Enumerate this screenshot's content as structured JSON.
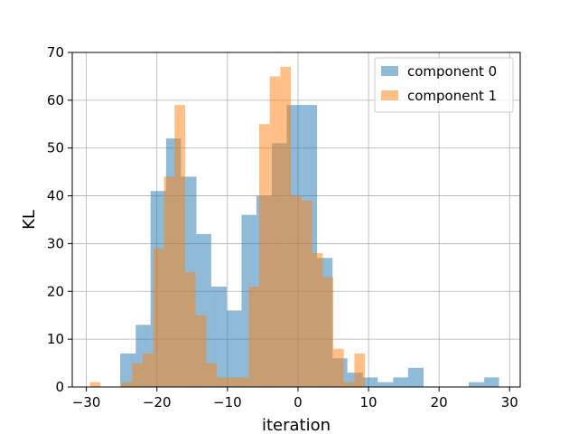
{
  "chart_data": {
    "type": "bar",
    "subtype": "overlaid-histogram",
    "title": "",
    "xlabel": "iteration",
    "ylabel": "KL",
    "xlim": [
      -32,
      31.5
    ],
    "ylim": [
      0,
      70
    ],
    "xticks": [
      -30,
      -20,
      -10,
      0,
      10,
      20,
      30
    ],
    "yticks": [
      0,
      10,
      20,
      30,
      40,
      50,
      60,
      70
    ],
    "grid": true,
    "legend_position": "top-right",
    "series": [
      {
        "name": "component 0",
        "color": "#1f77b4",
        "alpha": 0.5,
        "bins": [
          [
            -25.2,
            -23.0,
            7
          ],
          [
            -23.0,
            -20.9,
            13
          ],
          [
            -20.9,
            -18.7,
            41
          ],
          [
            -18.7,
            -16.6,
            52
          ],
          [
            -16.6,
            -14.4,
            44
          ],
          [
            -14.4,
            -12.3,
            32
          ],
          [
            -12.3,
            -10.1,
            21
          ],
          [
            -10.1,
            -8.0,
            16
          ],
          [
            -8.0,
            -5.9,
            36
          ],
          [
            -5.9,
            -3.7,
            40
          ],
          [
            -3.7,
            -1.6,
            51
          ],
          [
            -1.6,
            0.6,
            59
          ],
          [
            0.6,
            2.7,
            59
          ],
          [
            2.7,
            4.9,
            27
          ],
          [
            4.9,
            7.0,
            6
          ],
          [
            7.0,
            9.2,
            3
          ],
          [
            9.2,
            11.3,
            2
          ],
          [
            11.3,
            13.5,
            1
          ],
          [
            13.5,
            15.6,
            2
          ],
          [
            15.6,
            17.8,
            4
          ],
          [
            17.8,
            19.9,
            0
          ],
          [
            19.9,
            22.1,
            0
          ],
          [
            22.1,
            24.2,
            0
          ],
          [
            24.2,
            26.4,
            1
          ],
          [
            26.4,
            28.5,
            2
          ]
        ]
      },
      {
        "name": "component 1",
        "color": "#ff7f0e",
        "alpha": 0.5,
        "bins": [
          [
            -29.5,
            -28.0,
            1
          ],
          [
            -28.0,
            -26.5,
            0
          ],
          [
            -26.5,
            -25.0,
            0
          ],
          [
            -25.0,
            -23.5,
            1
          ],
          [
            -23.5,
            -22.0,
            5
          ],
          [
            -22.0,
            -20.5,
            7
          ],
          [
            -20.5,
            -19.0,
            29
          ],
          [
            -19.0,
            -17.5,
            44
          ],
          [
            -17.5,
            -16.0,
            59
          ],
          [
            -16.0,
            -14.5,
            24
          ],
          [
            -14.5,
            -13.0,
            15
          ],
          [
            -13.0,
            -11.5,
            5
          ],
          [
            -11.5,
            -10.0,
            2
          ],
          [
            -10.0,
            -8.5,
            2
          ],
          [
            -8.5,
            -7.0,
            2
          ],
          [
            -7.0,
            -5.5,
            21
          ],
          [
            -5.5,
            -4.0,
            55
          ],
          [
            -4.0,
            -2.5,
            65
          ],
          [
            -2.5,
            -1.0,
            67
          ],
          [
            -1.0,
            0.5,
            40
          ],
          [
            0.5,
            2.0,
            39
          ],
          [
            2.0,
            3.5,
            28
          ],
          [
            3.5,
            5.0,
            23
          ],
          [
            5.0,
            6.5,
            8
          ],
          [
            6.5,
            8.0,
            1
          ],
          [
            8.0,
            9.5,
            7
          ]
        ]
      }
    ]
  }
}
